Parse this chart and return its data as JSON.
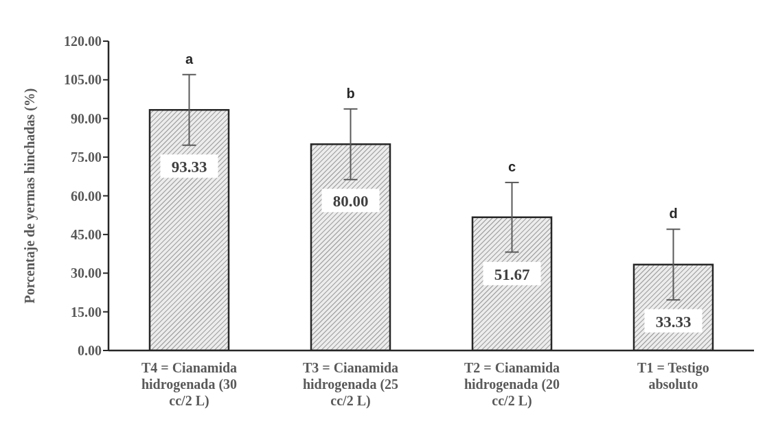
{
  "chart_data": {
    "type": "bar",
    "ylabel": "Porcentaje de yermas hinchadas (%)",
    "categories": [
      "T4 = Cianamida hidrogenada (30 cc/2 L)",
      "T3 = Cianamida hidrogenada (25 cc/2 L)",
      "T2 = Cianamida hidrogenada (20 cc/2 L)",
      "T1 = Testigo absoluto"
    ],
    "values": [
      93.33,
      80.0,
      51.67,
      33.33
    ],
    "value_labels": [
      "93.33",
      "80.00",
      "51.67",
      "33.33"
    ],
    "errors": [
      13.7,
      13.7,
      13.5,
      13.7
    ],
    "color": "#262626",
    "ylim": [
      0,
      120
    ],
    "yticks": [
      {
        "value": 0,
        "label": "0.00"
      },
      {
        "value": 15,
        "label": "15.00"
      },
      {
        "value": 30,
        "label": "30.00"
      },
      {
        "value": 45,
        "label": "45.00"
      },
      {
        "value": 60,
        "label": "60.00"
      },
      {
        "value": 75,
        "label": "75.00"
      },
      {
        "value": 90,
        "label": "90.00"
      },
      {
        "value": 105,
        "label": "105.00"
      },
      {
        "value": 120,
        "label": "120.00"
      }
    ],
    "grid": false,
    "legend": false,
    "annotations": [
      "a",
      "b",
      "c",
      "d"
    ]
  }
}
